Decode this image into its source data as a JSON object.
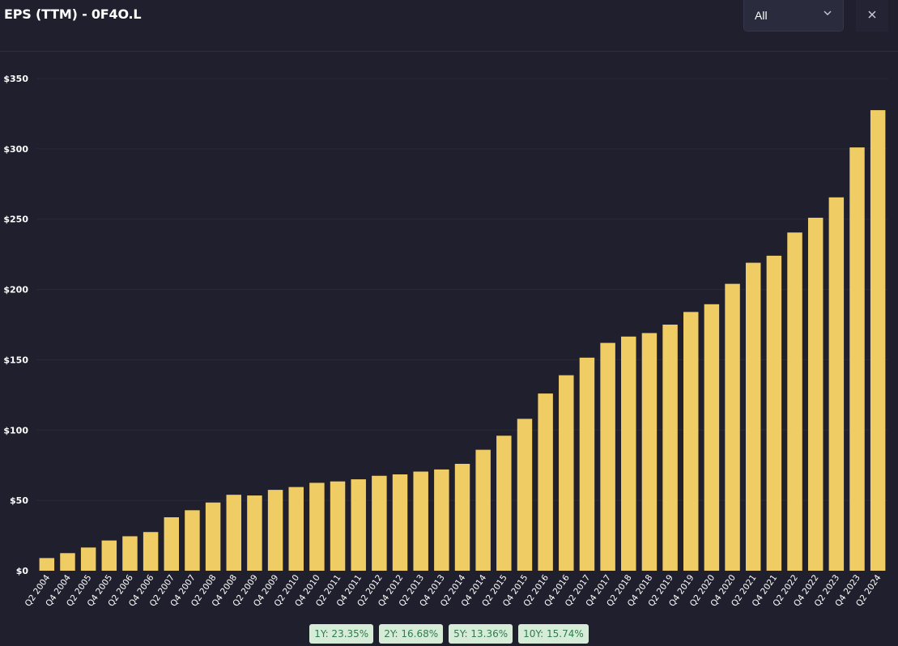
{
  "header": {
    "title": "EPS (TTM) - 0F4O.L",
    "range_value": "All"
  },
  "colors": {
    "background": "#1f1f2d",
    "bar": "#f0cc64",
    "grid": "#2a2a38",
    "badge_bg": "#d6ecd9",
    "badge_text": "#2e7d4a"
  },
  "chart_data": {
    "type": "bar",
    "title": "",
    "xlabel": "",
    "ylabel": "",
    "ylim": [
      0,
      350
    ],
    "y_ticks": [
      "$0",
      "$50",
      "$100",
      "$150",
      "$200",
      "$250",
      "$300",
      "$350"
    ],
    "y_tick_values": [
      0,
      50,
      100,
      150,
      200,
      250,
      300,
      350
    ],
    "grid": true,
    "categories": [
      "Q2 2004",
      "Q4 2004",
      "Q2 2005",
      "Q4 2005",
      "Q2 2006",
      "Q4 2006",
      "Q2 2007",
      "Q4 2007",
      "Q2 2008",
      "Q4 2008",
      "Q2 2009",
      "Q4 2009",
      "Q2 2010",
      "Q4 2010",
      "Q2 2011",
      "Q4 2011",
      "Q2 2012",
      "Q4 2012",
      "Q2 2013",
      "Q4 2013",
      "Q2 2014",
      "Q4 2014",
      "Q2 2015",
      "Q4 2015",
      "Q2 2016",
      "Q4 2016",
      "Q2 2017",
      "Q4 2017",
      "Q2 2018",
      "Q4 2018",
      "Q2 2019",
      "Q4 2019",
      "Q2 2020",
      "Q4 2020",
      "Q2 2021",
      "Q4 2021",
      "Q2 2022",
      "Q4 2022",
      "Q2 2023",
      "Q4 2023",
      "Q2 2024"
    ],
    "values": [
      9,
      12.5,
      16.5,
      21.5,
      24.5,
      27.5,
      38,
      43,
      48.5,
      54,
      53.5,
      57.5,
      59.5,
      62.5,
      63.5,
      65,
      67.5,
      68.5,
      70.5,
      72,
      76,
      86,
      96,
      108,
      126,
      139,
      151.5,
      162,
      166.5,
      169,
      175,
      184,
      189.5,
      204,
      219,
      224,
      240.5,
      251,
      265.5,
      301,
      327.5
    ]
  },
  "growth_rates": [
    {
      "label": "1Y: 23.35%"
    },
    {
      "label": "2Y: 16.68%"
    },
    {
      "label": "5Y: 13.36%"
    },
    {
      "label": "10Y: 15.74%"
    }
  ]
}
